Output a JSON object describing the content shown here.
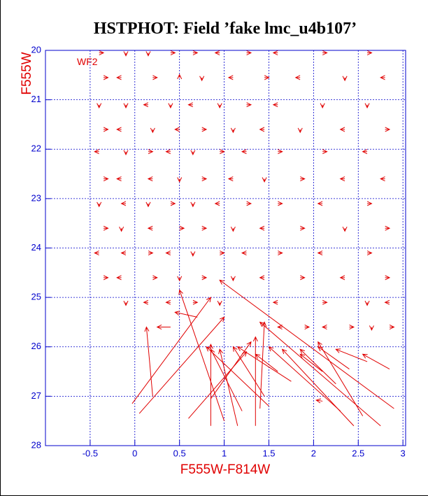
{
  "chart_data": {
    "type": "quiver",
    "title": "HSTPHOT: Field ’fake lmc_u4b107’",
    "annotation": "WF2",
    "x_label": "F555W-F814W",
    "y_label": "F555W",
    "color": "#e00000",
    "axis_color": "#0000cc",
    "grid": true,
    "y_inverted": true,
    "xlim": [
      -1,
      3.03
    ],
    "ylim": [
      20,
      28
    ],
    "xticks": [
      -0.5,
      0,
      0.5,
      1,
      1.5,
      2,
      2.5,
      3
    ],
    "yticks": [
      20,
      21,
      22,
      23,
      24,
      25,
      26,
      27,
      28
    ],
    "arrows": [
      {
        "x0": -0.4,
        "y0": 20.05,
        "x1": -0.35,
        "y1": 20.05
      },
      {
        "x0": -0.1,
        "y0": 20.05,
        "x1": -0.1,
        "y1": 20.11
      },
      {
        "x0": 0.15,
        "y0": 20.05,
        "x1": 0.15,
        "y1": 20.11
      },
      {
        "x0": 0.4,
        "y0": 20.05,
        "x1": 0.45,
        "y1": 20.05
      },
      {
        "x0": 0.65,
        "y0": 20.05,
        "x1": 0.7,
        "y1": 20.05
      },
      {
        "x0": 0.95,
        "y0": 20.05,
        "x1": 0.9,
        "y1": 20.05
      },
      {
        "x0": 1.25,
        "y0": 20.05,
        "x1": 1.3,
        "y1": 20.05
      },
      {
        "x0": 1.6,
        "y0": 20.05,
        "x1": 1.55,
        "y1": 20.05
      },
      {
        "x0": 2.1,
        "y0": 20.05,
        "x1": 2.15,
        "y1": 20.05
      },
      {
        "x0": 2.6,
        "y0": 20.05,
        "x1": 2.65,
        "y1": 20.05
      },
      {
        "x0": -0.35,
        "y0": 20.55,
        "x1": -0.3,
        "y1": 20.55
      },
      {
        "x0": -0.15,
        "y0": 20.55,
        "x1": -0.2,
        "y1": 20.55
      },
      {
        "x0": 0.2,
        "y0": 20.55,
        "x1": 0.25,
        "y1": 20.55
      },
      {
        "x0": 0.5,
        "y0": 20.55,
        "x1": 0.5,
        "y1": 20.49
      },
      {
        "x0": 0.75,
        "y0": 20.55,
        "x1": 0.75,
        "y1": 20.61
      },
      {
        "x0": 1.1,
        "y0": 20.55,
        "x1": 1.05,
        "y1": 20.55
      },
      {
        "x0": 1.45,
        "y0": 20.55,
        "x1": 1.5,
        "y1": 20.55
      },
      {
        "x0": 1.85,
        "y0": 20.55,
        "x1": 1.8,
        "y1": 20.55
      },
      {
        "x0": 2.35,
        "y0": 20.55,
        "x1": 2.35,
        "y1": 20.61
      },
      {
        "x0": 2.8,
        "y0": 20.55,
        "x1": 2.75,
        "y1": 20.55
      },
      {
        "x0": -0.4,
        "y0": 21.1,
        "x1": -0.4,
        "y1": 21.16
      },
      {
        "x0": -0.1,
        "y0": 21.1,
        "x1": -0.1,
        "y1": 21.16
      },
      {
        "x0": 0.15,
        "y0": 21.1,
        "x1": 0.1,
        "y1": 21.1
      },
      {
        "x0": 0.4,
        "y0": 21.1,
        "x1": 0.4,
        "y1": 21.16
      },
      {
        "x0": 0.65,
        "y0": 21.1,
        "x1": 0.6,
        "y1": 21.1
      },
      {
        "x0": 0.95,
        "y0": 21.1,
        "x1": 0.95,
        "y1": 21.16
      },
      {
        "x0": 1.25,
        "y0": 21.1,
        "x1": 1.3,
        "y1": 21.1
      },
      {
        "x0": 1.6,
        "y0": 21.1,
        "x1": 1.55,
        "y1": 21.1
      },
      {
        "x0": 2.1,
        "y0": 21.1,
        "x1": 2.1,
        "y1": 21.16
      },
      {
        "x0": 2.6,
        "y0": 21.1,
        "x1": 2.6,
        "y1": 21.16
      },
      {
        "x0": -0.35,
        "y0": 21.6,
        "x1": -0.3,
        "y1": 21.6
      },
      {
        "x0": -0.15,
        "y0": 21.6,
        "x1": -0.2,
        "y1": 21.6
      },
      {
        "x0": 0.2,
        "y0": 21.6,
        "x1": 0.2,
        "y1": 21.66
      },
      {
        "x0": 0.5,
        "y0": 21.6,
        "x1": 0.45,
        "y1": 21.6
      },
      {
        "x0": 0.75,
        "y0": 21.6,
        "x1": 0.8,
        "y1": 21.6
      },
      {
        "x0": 1.1,
        "y0": 21.6,
        "x1": 1.1,
        "y1": 21.66
      },
      {
        "x0": 1.45,
        "y0": 21.6,
        "x1": 1.4,
        "y1": 21.6
      },
      {
        "x0": 1.85,
        "y0": 21.6,
        "x1": 1.85,
        "y1": 21.66
      },
      {
        "x0": 2.35,
        "y0": 21.6,
        "x1": 2.3,
        "y1": 21.6
      },
      {
        "x0": 2.8,
        "y0": 21.6,
        "x1": 2.85,
        "y1": 21.6
      },
      {
        "x0": -0.4,
        "y0": 22.05,
        "x1": -0.45,
        "y1": 22.05
      },
      {
        "x0": -0.1,
        "y0": 22.05,
        "x1": -0.1,
        "y1": 22.11
      },
      {
        "x0": 0.15,
        "y0": 22.05,
        "x1": 0.2,
        "y1": 22.05
      },
      {
        "x0": 0.4,
        "y0": 22.05,
        "x1": 0.35,
        "y1": 22.05
      },
      {
        "x0": 0.65,
        "y0": 22.05,
        "x1": 0.65,
        "y1": 22.11
      },
      {
        "x0": 0.95,
        "y0": 22.05,
        "x1": 1.0,
        "y1": 22.05
      },
      {
        "x0": 1.25,
        "y0": 22.05,
        "x1": 1.2,
        "y1": 22.05
      },
      {
        "x0": 1.6,
        "y0": 22.05,
        "x1": 1.65,
        "y1": 22.05
      },
      {
        "x0": 2.1,
        "y0": 22.05,
        "x1": 2.15,
        "y1": 22.05
      },
      {
        "x0": 2.6,
        "y0": 22.05,
        "x1": 2.55,
        "y1": 22.05
      },
      {
        "x0": -0.35,
        "y0": 22.6,
        "x1": -0.3,
        "y1": 22.6
      },
      {
        "x0": -0.15,
        "y0": 22.6,
        "x1": -0.2,
        "y1": 22.6
      },
      {
        "x0": 0.2,
        "y0": 22.6,
        "x1": 0.15,
        "y1": 22.6
      },
      {
        "x0": 0.5,
        "y0": 22.6,
        "x1": 0.5,
        "y1": 22.66
      },
      {
        "x0": 0.75,
        "y0": 22.6,
        "x1": 0.8,
        "y1": 22.6
      },
      {
        "x0": 1.1,
        "y0": 22.6,
        "x1": 1.05,
        "y1": 22.6
      },
      {
        "x0": 1.45,
        "y0": 22.6,
        "x1": 1.45,
        "y1": 22.66
      },
      {
        "x0": 1.85,
        "y0": 22.6,
        "x1": 1.9,
        "y1": 22.6
      },
      {
        "x0": 2.35,
        "y0": 22.6,
        "x1": 2.3,
        "y1": 22.6
      },
      {
        "x0": 2.8,
        "y0": 22.6,
        "x1": 2.75,
        "y1": 22.6
      },
      {
        "x0": -0.4,
        "y0": 23.1,
        "x1": -0.4,
        "y1": 23.16
      },
      {
        "x0": -0.1,
        "y0": 23.1,
        "x1": -0.15,
        "y1": 23.1
      },
      {
        "x0": 0.15,
        "y0": 23.1,
        "x1": 0.15,
        "y1": 23.16
      },
      {
        "x0": 0.4,
        "y0": 23.1,
        "x1": 0.45,
        "y1": 23.1
      },
      {
        "x0": 0.65,
        "y0": 23.1,
        "x1": 0.65,
        "y1": 23.16
      },
      {
        "x0": 0.95,
        "y0": 23.1,
        "x1": 0.9,
        "y1": 23.1
      },
      {
        "x0": 1.25,
        "y0": 23.1,
        "x1": 1.3,
        "y1": 23.1
      },
      {
        "x0": 1.6,
        "y0": 23.1,
        "x1": 1.65,
        "y1": 23.1
      },
      {
        "x0": 2.1,
        "y0": 23.1,
        "x1": 2.05,
        "y1": 23.1
      },
      {
        "x0": 2.6,
        "y0": 23.1,
        "x1": 2.65,
        "y1": 23.1
      },
      {
        "x0": -0.35,
        "y0": 23.6,
        "x1": -0.3,
        "y1": 23.6
      },
      {
        "x0": -0.15,
        "y0": 23.6,
        "x1": -0.15,
        "y1": 23.66
      },
      {
        "x0": 0.2,
        "y0": 23.6,
        "x1": 0.15,
        "y1": 23.6
      },
      {
        "x0": 0.5,
        "y0": 23.6,
        "x1": 0.55,
        "y1": 23.6
      },
      {
        "x0": 0.75,
        "y0": 23.6,
        "x1": 0.8,
        "y1": 23.6
      },
      {
        "x0": 1.1,
        "y0": 23.6,
        "x1": 1.1,
        "y1": 23.66
      },
      {
        "x0": 1.45,
        "y0": 23.6,
        "x1": 1.4,
        "y1": 23.6
      },
      {
        "x0": 1.85,
        "y0": 23.6,
        "x1": 1.9,
        "y1": 23.6
      },
      {
        "x0": 2.35,
        "y0": 23.6,
        "x1": 2.35,
        "y1": 23.66
      },
      {
        "x0": 2.8,
        "y0": 23.6,
        "x1": 2.85,
        "y1": 23.6
      },
      {
        "x0": -0.4,
        "y0": 24.1,
        "x1": -0.45,
        "y1": 24.1
      },
      {
        "x0": -0.1,
        "y0": 24.1,
        "x1": -0.15,
        "y1": 24.1
      },
      {
        "x0": 0.15,
        "y0": 24.1,
        "x1": 0.2,
        "y1": 24.1
      },
      {
        "x0": 0.4,
        "y0": 24.1,
        "x1": 0.35,
        "y1": 24.1
      },
      {
        "x0": 0.65,
        "y0": 24.1,
        "x1": 0.65,
        "y1": 24.16
      },
      {
        "x0": 0.95,
        "y0": 24.1,
        "x1": 1.0,
        "y1": 24.1
      },
      {
        "x0": 1.25,
        "y0": 24.1,
        "x1": 1.2,
        "y1": 24.1
      },
      {
        "x0": 1.6,
        "y0": 24.1,
        "x1": 1.65,
        "y1": 24.1
      },
      {
        "x0": 2.1,
        "y0": 24.1,
        "x1": 2.05,
        "y1": 24.1
      },
      {
        "x0": 2.6,
        "y0": 24.1,
        "x1": 2.65,
        "y1": 24.1
      },
      {
        "x0": -0.35,
        "y0": 24.6,
        "x1": -0.3,
        "y1": 24.6
      },
      {
        "x0": -0.15,
        "y0": 24.6,
        "x1": -0.2,
        "y1": 24.6
      },
      {
        "x0": 0.2,
        "y0": 24.6,
        "x1": 0.25,
        "y1": 24.6
      },
      {
        "x0": 0.5,
        "y0": 24.6,
        "x1": 0.5,
        "y1": 24.66
      },
      {
        "x0": 0.75,
        "y0": 24.6,
        "x1": 0.8,
        "y1": 24.6
      },
      {
        "x0": 1.1,
        "y0": 24.6,
        "x1": 1.1,
        "y1": 24.66
      },
      {
        "x0": 1.45,
        "y0": 24.6,
        "x1": 1.4,
        "y1": 24.6
      },
      {
        "x0": 1.85,
        "y0": 24.6,
        "x1": 1.9,
        "y1": 24.6
      },
      {
        "x0": 2.35,
        "y0": 24.6,
        "x1": 2.3,
        "y1": 24.6
      },
      {
        "x0": 2.8,
        "y0": 24.6,
        "x1": 2.85,
        "y1": 24.6
      },
      {
        "x0": -0.1,
        "y0": 25.1,
        "x1": -0.1,
        "y1": 25.16
      },
      {
        "x0": 0.15,
        "y0": 25.1,
        "x1": 0.1,
        "y1": 25.1
      },
      {
        "x0": 0.4,
        "y0": 25.1,
        "x1": 0.35,
        "y1": 25.1
      },
      {
        "x0": 0.65,
        "y0": 25.1,
        "x1": 0.7,
        "y1": 25.1
      },
      {
        "x0": 0.95,
        "y0": 25.1,
        "x1": 0.95,
        "y1": 25.16
      },
      {
        "x0": 1.6,
        "y0": 25.1,
        "x1": 1.55,
        "y1": 25.1
      },
      {
        "x0": 2.1,
        "y0": 25.1,
        "x1": 2.15,
        "y1": 25.1
      },
      {
        "x0": 2.6,
        "y0": 25.1,
        "x1": 2.6,
        "y1": 25.16
      },
      {
        "x0": 2.85,
        "y0": 25.1,
        "x1": 2.8,
        "y1": 25.1
      },
      {
        "x0": 1.65,
        "y0": 25.6,
        "x1": 1.6,
        "y1": 25.6
      },
      {
        "x0": 1.9,
        "y0": 25.6,
        "x1": 1.95,
        "y1": 25.6
      },
      {
        "x0": 2.15,
        "y0": 25.6,
        "x1": 2.1,
        "y1": 25.6
      },
      {
        "x0": 2.4,
        "y0": 25.6,
        "x1": 2.45,
        "y1": 25.6
      },
      {
        "x0": 2.65,
        "y0": 25.6,
        "x1": 2.65,
        "y1": 25.66
      },
      {
        "x0": 2.85,
        "y0": 25.6,
        "x1": 2.9,
        "y1": 25.6
      },
      {
        "x0": -0.03,
        "y0": 27.15,
        "x1": 0.85,
        "y1": 25.0
      },
      {
        "x0": 0.2,
        "y0": 27.0,
        "x1": 0.13,
        "y1": 25.6
      },
      {
        "x0": 0.05,
        "y0": 27.35,
        "x1": 1.0,
        "y1": 25.4
      },
      {
        "x0": 1.0,
        "y0": 27.5,
        "x1": 0.5,
        "y1": 24.85
      },
      {
        "x0": 2.9,
        "y0": 27.25,
        "x1": 0.95,
        "y1": 24.65
      },
      {
        "x0": 2.85,
        "y0": 26.45,
        "x1": 2.55,
        "y1": 26.15
      },
      {
        "x0": 2.75,
        "y0": 27.6,
        "x1": 1.4,
        "y1": 25.5
      },
      {
        "x0": 2.45,
        "y0": 27.6,
        "x1": 1.65,
        "y1": 26.05
      },
      {
        "x0": 2.55,
        "y0": 27.4,
        "x1": 2.05,
        "y1": 25.9
      },
      {
        "x0": 2.4,
        "y0": 26.45,
        "x1": 2.05,
        "y1": 26.0
      },
      {
        "x0": 2.6,
        "y0": 26.3,
        "x1": 2.25,
        "y1": 26.05
      },
      {
        "x0": 2.3,
        "y0": 27.3,
        "x1": 1.5,
        "y1": 26.0
      },
      {
        "x0": 2.1,
        "y0": 26.5,
        "x1": 1.85,
        "y1": 26.15
      },
      {
        "x0": 2.25,
        "y0": 26.75,
        "x1": 1.85,
        "y1": 26.05
      },
      {
        "x0": 1.4,
        "y0": 27.25,
        "x1": 1.45,
        "y1": 25.5
      },
      {
        "x0": 1.35,
        "y0": 27.6,
        "x1": 1.35,
        "y1": 25.8
      },
      {
        "x0": 1.6,
        "y0": 26.5,
        "x1": 1.35,
        "y1": 26.15
      },
      {
        "x0": 1.45,
        "y0": 27.0,
        "x1": 1.1,
        "y1": 26.0
      },
      {
        "x0": 1.75,
        "y0": 26.7,
        "x1": 1.15,
        "y1": 26.0
      },
      {
        "x0": 1.15,
        "y0": 27.6,
        "x1": 0.95,
        "y1": 26.05
      },
      {
        "x0": 0.85,
        "y0": 27.6,
        "x1": 0.85,
        "y1": 25.95
      },
      {
        "x0": 0.6,
        "y0": 27.45,
        "x1": 1.25,
        "y1": 26.1
      },
      {
        "x0": 0.85,
        "y0": 27.05,
        "x1": 1.3,
        "y1": 25.9
      },
      {
        "x0": 1.5,
        "y0": 27.2,
        "x1": 0.8,
        "y1": 26.0
      },
      {
        "x0": 1.2,
        "y0": 27.3,
        "x1": 0.85,
        "y1": 26.05
      },
      {
        "x0": 0.4,
        "y0": 25.6,
        "x1": 0.25,
        "y1": 25.6
      },
      {
        "x0": 0.7,
        "y0": 25.4,
        "x1": 0.45,
        "y1": 25.3
      },
      {
        "x0": 2.1,
        "y0": 27.1,
        "x1": 2.03,
        "y1": 27.08
      }
    ]
  }
}
